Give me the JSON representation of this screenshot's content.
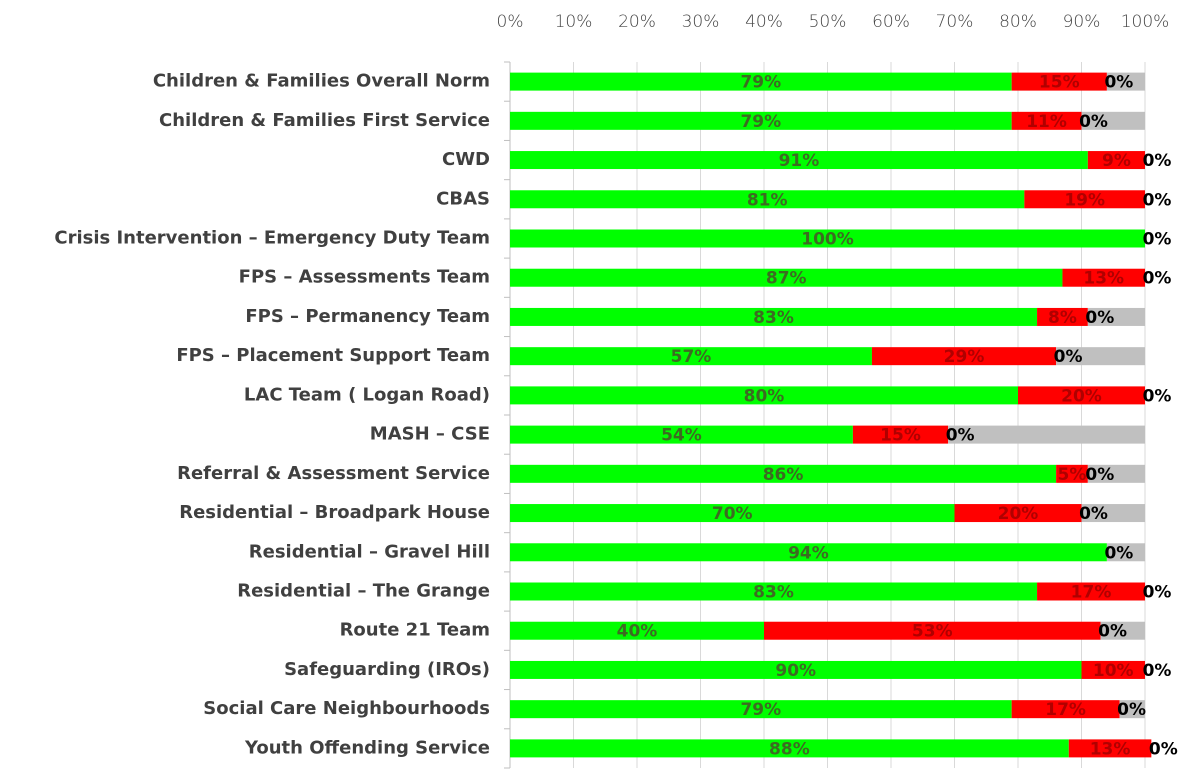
{
  "chart_data": {
    "type": "stacked_barh",
    "categories": [
      "Children & Families Overall Norm",
      "Children & Families First Service",
      "CWD",
      "CBAS",
      "Crisis Intervention – Emergency Duty Team",
      "FPS – Assessments Team",
      "FPS – Permanency Team",
      "FPS – Placement Support Team",
      "LAC Team ( Logan Road)",
      "MASH – CSE",
      "Referral & Assessment Service",
      "Residential – Broadpark House",
      "Residential  – Gravel Hill",
      "Residential  – The Grange",
      "Route 21 Team",
      "Safeguarding (IROs)",
      "Social Care Neighbourhoods",
      "Youth Offending Service"
    ],
    "series": [
      {
        "color": "#00ff00",
        "label_color": "#3d6b22",
        "values": [
          79,
          79,
          91,
          81,
          100,
          87,
          83,
          57,
          80,
          54,
          86,
          70,
          94,
          83,
          40,
          90,
          79,
          88
        ],
        "value_labels": [
          "79%",
          "79%",
          "91%",
          "81%",
          "100%",
          "87%",
          "83%",
          "57%",
          "80%",
          "54%",
          "86%",
          "70%",
          "94%",
          "83%",
          "40%",
          "90%",
          "79%",
          "88%"
        ]
      },
      {
        "color": "#ff0000",
        "label_color": "#b00000",
        "values": [
          15,
          11,
          9,
          19,
          0,
          13,
          8,
          29,
          20,
          15,
          5,
          20,
          0,
          17,
          53,
          10,
          17,
          13
        ],
        "value_labels": [
          "15%",
          "11%",
          "9%",
          "19%",
          null,
          "13%",
          "8%",
          "29%",
          "20%",
          "15%",
          "5%",
          "20%",
          null,
          "17%",
          "53%",
          "10%",
          "17%",
          "13%"
        ]
      },
      {
        "color": "#ffc000",
        "label_color": "#000000",
        "values": [
          0,
          0,
          0,
          0,
          0,
          0,
          0,
          0,
          0,
          0,
          0,
          0,
          0,
          0,
          0,
          0,
          0,
          0
        ],
        "value_labels": [
          "0%",
          "0%",
          "0%",
          "0%",
          "0%",
          "0%",
          "0%",
          "0%",
          "0%",
          "0%",
          "0%",
          "0%",
          "0%",
          "0%",
          "0%",
          "0%",
          "0%",
          "0%"
        ]
      },
      {
        "color": "#c0c0c0",
        "label_color": null,
        "values": [
          6,
          10,
          0,
          0,
          0,
          0,
          9,
          14,
          0,
          31,
          9,
          10,
          6,
          0,
          7,
          0,
          4,
          0
        ]
      }
    ],
    "xlim": [
      0,
      100
    ],
    "xticks": [
      {
        "value": 0,
        "label": "0%"
      },
      {
        "value": 10,
        "label": "10%"
      },
      {
        "value": 20,
        "label": "20%"
      },
      {
        "value": 30,
        "label": "30%"
      },
      {
        "value": 40,
        "label": "40%"
      },
      {
        "value": 50,
        "label": "50%"
      },
      {
        "value": 60,
        "label": "60%"
      },
      {
        "value": 70,
        "label": "70%"
      },
      {
        "value": 80,
        "label": "80%"
      },
      {
        "value": 90,
        "label": "90%"
      },
      {
        "value": 100,
        "label": "100%"
      }
    ],
    "grid": true
  }
}
